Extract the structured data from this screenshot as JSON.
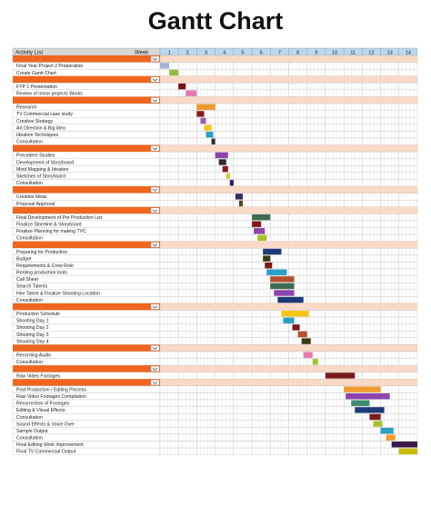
{
  "title": "Gantt Chart",
  "header": {
    "activity_label": "Activity List",
    "week_label": "Week"
  },
  "colors": {
    "section_band": "#f0661e",
    "section_fill": "#f9d9c7",
    "header_grey": "#d7d7d7",
    "header_blue": "#bdd7ee",
    "week_bar": "#3a3a0a"
  },
  "chart_data": {
    "type": "gantt",
    "title": "Gantt Chart",
    "weeks": [
      "1",
      "2",
      "3",
      "4",
      "5",
      "6",
      "7",
      "8",
      "9",
      "10",
      "11",
      "12",
      "13",
      "14"
    ],
    "sections": [
      {
        "tasks": [
          {
            "name": "Final Year Project 2 Preperation",
            "start": 1.0,
            "end": 1.5,
            "color": "#9fb3d9"
          },
          {
            "name": "Create Gantt Chart",
            "start": 1.5,
            "end": 2.0,
            "color": "#8fbf3f"
          }
        ]
      },
      {
        "tasks": [
          {
            "name": "FYP 1 Presentation",
            "start": 2.0,
            "end": 2.4,
            "color": "#7a1014"
          },
          {
            "name": "Review of minor projects Works",
            "start": 2.4,
            "end": 3.0,
            "color": "#e37ab0"
          }
        ]
      },
      {
        "tasks": [
          {
            "name": "Research",
            "start": 3.0,
            "end": 4.0,
            "color": "#f39a2e"
          },
          {
            "name": "TV Commercial case study",
            "start": 3.0,
            "end": 3.4,
            "color": "#8a1a1a"
          },
          {
            "name": "Creative Strategy",
            "start": 3.2,
            "end": 3.5,
            "color": "#9b59b6"
          },
          {
            "name": "Art Direction & Big Idea",
            "start": 3.4,
            "end": 3.8,
            "color": "#f5c518"
          },
          {
            "name": "Ideation Techniques",
            "start": 3.5,
            "end": 3.9,
            "color": "#2aa0c8"
          },
          {
            "name": "Consultation",
            "start": 3.8,
            "end": 4.0,
            "color": "#2e2e2e"
          }
        ]
      },
      {
        "tasks": [
          {
            "name": "Precedent Studies",
            "start": 4.0,
            "end": 4.7,
            "color": "#8e44ad"
          },
          {
            "name": "Development of Storyboard",
            "start": 4.2,
            "end": 4.6,
            "color": "#2c2c2c"
          },
          {
            "name": "Mind Mapping & Ideation",
            "start": 4.4,
            "end": 4.7,
            "color": "#8a1a1a"
          },
          {
            "name": "Sketches of Storyboard",
            "start": 4.6,
            "end": 4.8,
            "color": "#c9d438"
          },
          {
            "name": "Consultation",
            "start": 4.8,
            "end": 5.0,
            "color": "#3a1a6a"
          }
        ]
      },
      {
        "tasks": [
          {
            "name": "Creative Ideas",
            "start": 5.1,
            "end": 5.5,
            "color": "#3a2a5a"
          },
          {
            "name": "Proposal Approval",
            "start": 5.3,
            "end": 5.5,
            "color": "#5a4a1a"
          }
        ]
      },
      {
        "tasks": [
          {
            "name": "Final Development of Pre Production List",
            "start": 6.0,
            "end": 7.0,
            "color": "#3d6b4f"
          },
          {
            "name": "Finalize Storeline & Storyboard",
            "start": 6.0,
            "end": 6.5,
            "color": "#7a1a1a"
          },
          {
            "name": "Finalize Planning for making TVC",
            "start": 6.1,
            "end": 6.7,
            "color": "#8e44ad"
          },
          {
            "name": "Consultation",
            "start": 6.3,
            "end": 6.8,
            "color": "#a7c22a"
          }
        ]
      },
      {
        "tasks": [
          {
            "name": "Preparing for Production",
            "start": 6.6,
            "end": 7.6,
            "color": "#1e3a7a"
          },
          {
            "name": "Budget",
            "start": 6.6,
            "end": 7.0,
            "color": "#3a3a10"
          },
          {
            "name": "Requirements & Crew Role",
            "start": 6.7,
            "end": 7.1,
            "color": "#7a1a1a"
          },
          {
            "name": "Renting production tools",
            "start": 6.8,
            "end": 7.9,
            "color": "#2aa0c8"
          },
          {
            "name": "Call Sheet",
            "start": 7.0,
            "end": 8.3,
            "color": "#b5502a"
          },
          {
            "name": "Search Talents",
            "start": 7.0,
            "end": 8.3,
            "color": "#3d6b4f"
          },
          {
            "name": "Hire Talent & Finalize Shooting Location",
            "start": 7.2,
            "end": 8.3,
            "color": "#8e44ad"
          },
          {
            "name": "Consultation",
            "start": 7.4,
            "end": 8.8,
            "color": "#1e3a7a"
          }
        ]
      },
      {
        "tasks": [
          {
            "name": "Production Schedule",
            "start": 7.6,
            "end": 9.1,
            "color": "#f5c518"
          },
          {
            "name": "Shooting Day 1",
            "start": 7.7,
            "end": 8.3,
            "color": "#2aa0c8"
          },
          {
            "name": "Shooting Day 2",
            "start": 8.2,
            "end": 8.6,
            "color": "#7a1a1a"
          },
          {
            "name": "Shooting Day 3",
            "start": 8.5,
            "end": 9.0,
            "color": "#b5502a"
          },
          {
            "name": "Shooting Day 4",
            "start": 8.7,
            "end": 9.2,
            "color": "#3a3a10"
          }
        ]
      },
      {
        "tasks": [
          {
            "name": "Recording Audio",
            "start": 8.8,
            "end": 9.3,
            "color": "#e37ab0"
          },
          {
            "name": "Consultation",
            "start": 9.3,
            "end": 9.6,
            "color": "#a7c22a"
          }
        ]
      },
      {
        "tasks": [
          {
            "name": "Raw Video Footages",
            "start": 10.0,
            "end": 11.6,
            "color": "#7a1a1a"
          }
        ]
      },
      {
        "tasks": [
          {
            "name": "Post Production / Editing Process",
            "start": 11.0,
            "end": 13.0,
            "color": "#f39a2e"
          },
          {
            "name": "Raw Video Footages Compilation",
            "start": 11.1,
            "end": 13.5,
            "color": "#8e44ad"
          },
          {
            "name": "Recorrection of Footages",
            "start": 11.4,
            "end": 12.4,
            "color": "#3d8b6f"
          },
          {
            "name": "Editing & Visual Effects",
            "start": 11.6,
            "end": 13.2,
            "color": "#1e3a7a"
          },
          {
            "name": "Consultation",
            "start": 12.4,
            "end": 13.0,
            "color": "#7a1a1a"
          },
          {
            "name": "Sound Effects & Voice Over",
            "start": 12.6,
            "end": 13.1,
            "color": "#a7c22a"
          },
          {
            "name": "Sample Output",
            "start": 13.0,
            "end": 13.7,
            "color": "#2aa0c8"
          },
          {
            "name": "Consultation",
            "start": 13.3,
            "end": 13.8,
            "color": "#f39a2e"
          },
          {
            "name": "Final Editing Work Improvement",
            "start": 13.6,
            "end": 15.0,
            "color": "#3a1a4a"
          },
          {
            "name": "Final TV Commercial Output",
            "start": 14.0,
            "end": 15.0,
            "color": "#c9b800"
          }
        ]
      }
    ]
  }
}
